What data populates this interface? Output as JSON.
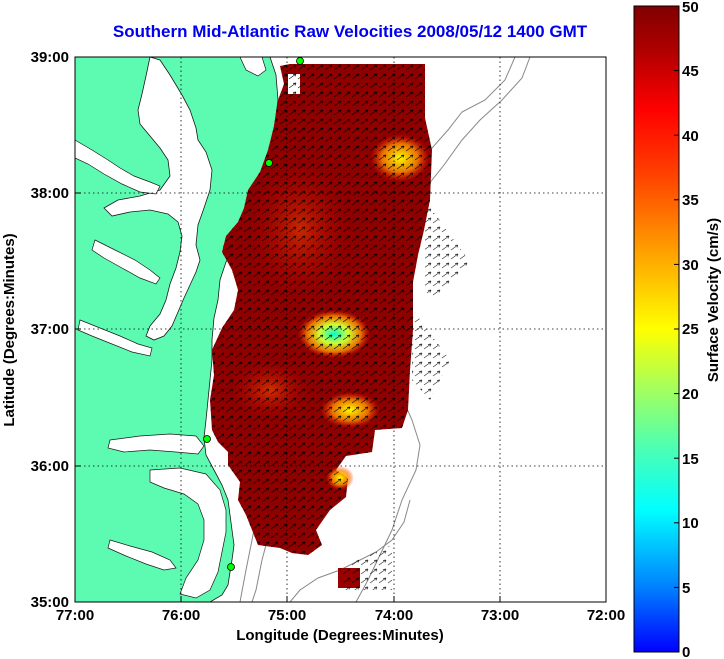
{
  "title": "Southern Mid-Atlantic Raw Velocities 2008/05/12 1400 GMT",
  "x_axis": {
    "label": "Longitude (Degrees:Minutes)",
    "ticks": [
      "77:00",
      "76:00",
      "75:00",
      "74:00",
      "73:00",
      "72:00"
    ]
  },
  "y_axis": {
    "label": "Latitude (Degrees:Minutes)",
    "ticks": [
      "39:00",
      "38:00",
      "37:00",
      "36:00",
      "35:00"
    ]
  },
  "colorbar": {
    "label": "Surface Velocity (cm/s)",
    "ticks": [
      "50",
      "45",
      "40",
      "35",
      "30",
      "25",
      "20",
      "15",
      "10",
      "5",
      "0"
    ],
    "min": 0,
    "max": 50,
    "colormap": [
      "#0000ff",
      "#00aaff",
      "#00ffff",
      "#55ffaa",
      "#aaff55",
      "#ffff00",
      "#ffaa00",
      "#ff5500",
      "#ff0000",
      "#aa0000",
      "#800000"
    ]
  },
  "map": {
    "lon_range": [
      -77,
      -72
    ],
    "lat_range": [
      35,
      39
    ],
    "land_color": "#5dfbb1",
    "grid": "dotted"
  }
}
